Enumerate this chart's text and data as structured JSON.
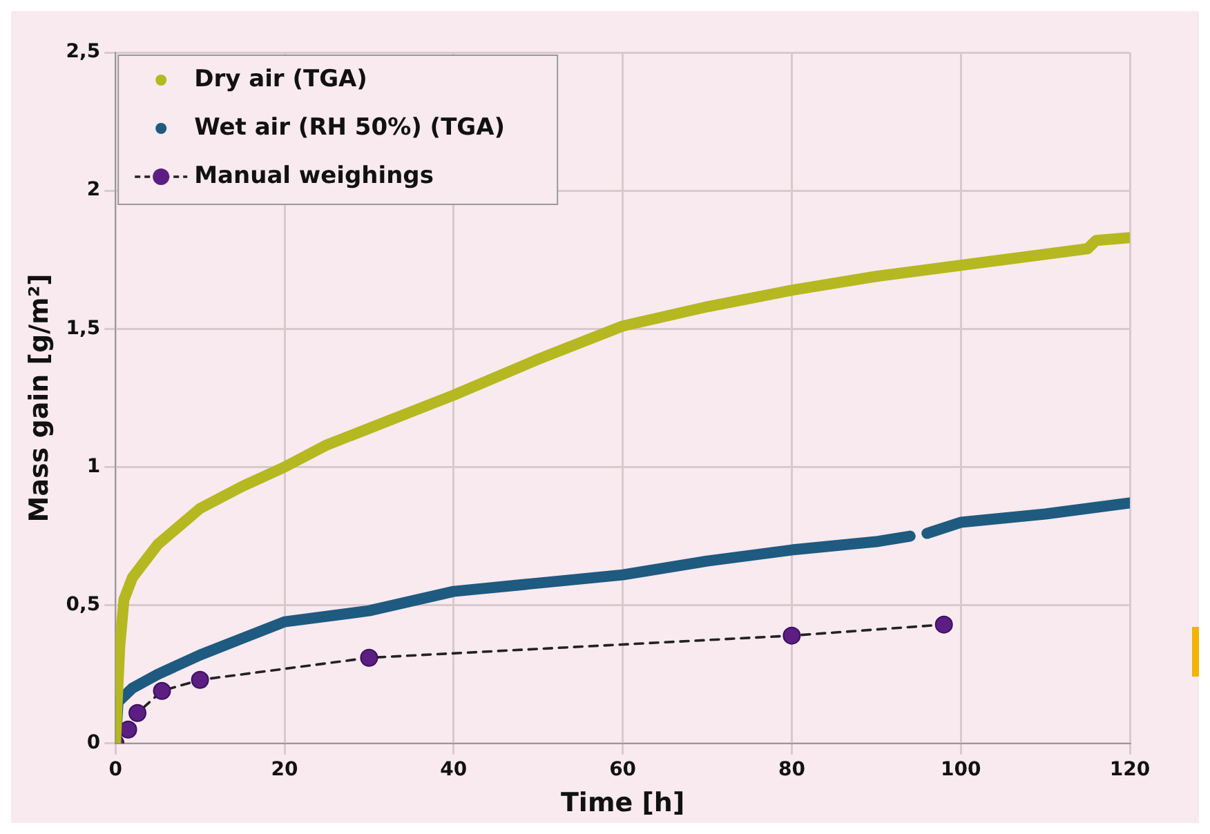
{
  "chart_data": {
    "type": "line",
    "xlabel": "Time [h]",
    "ylabel": "Mass gain [g/m²]",
    "xlim": [
      0,
      120
    ],
    "xticks": [
      0,
      20,
      40,
      60,
      80,
      100,
      120
    ],
    "ylim": [
      0,
      2.5
    ],
    "yticks": [
      0,
      {
        "value": 0.5,
        "label": "0,5"
      },
      1,
      {
        "value": 1.5,
        "label": "1,5"
      },
      2,
      {
        "value": 2.5,
        "label": "2,5"
      }
    ],
    "grid": true,
    "legend": "top left",
    "series": [
      {
        "name": "Dry air (TGA)",
        "color": "#b5b820",
        "marker": "none",
        "line_style": "solid",
        "x": [
          0,
          0.2,
          0.5,
          1,
          2,
          5,
          10,
          15,
          20,
          25,
          30,
          35,
          40,
          50,
          60,
          70,
          80,
          90,
          100,
          110,
          115,
          116,
          120
        ],
        "values": [
          0,
          0.15,
          0.35,
          0.52,
          0.6,
          0.72,
          0.85,
          0.93,
          1.0,
          1.08,
          1.14,
          1.2,
          1.26,
          1.39,
          1.51,
          1.58,
          1.64,
          1.69,
          1.73,
          1.77,
          1.79,
          1.82,
          1.83
        ]
      },
      {
        "name": "Wet air (RH 50%) (TGA)",
        "color": "#1f5a80",
        "marker": "none",
        "line_style": "solid",
        "x": [
          0,
          0.3,
          2,
          5,
          10,
          15,
          20,
          30,
          40,
          50,
          60,
          70,
          80,
          90,
          94,
          95,
          96,
          100,
          110,
          120
        ],
        "values": [
          0,
          0.15,
          0.2,
          0.25,
          0.32,
          0.38,
          0.44,
          0.48,
          0.55,
          0.58,
          0.61,
          0.66,
          0.7,
          0.73,
          0.75,
          null,
          0.76,
          0.8,
          0.83,
          0.87
        ]
      },
      {
        "name": "Manual weighings",
        "color": "#5c1e82",
        "marker": "circle",
        "line_style": "dashed",
        "x": [
          0,
          1.5,
          2.6,
          5.5,
          10,
          30,
          80,
          98
        ],
        "values": [
          0,
          0.05,
          0.11,
          0.19,
          0.23,
          0.31,
          0.39,
          0.43
        ]
      }
    ]
  }
}
